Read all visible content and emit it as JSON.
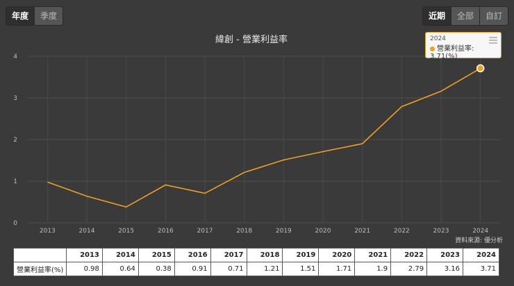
{
  "tabs_period": [
    {
      "label": "年度",
      "active": true
    },
    {
      "label": "季度",
      "active": false
    }
  ],
  "tabs_range": [
    {
      "label": "近期",
      "active": true
    },
    {
      "label": "全部",
      "active": false
    },
    {
      "label": "自訂",
      "active": false
    }
  ],
  "chart_data": {
    "type": "line",
    "title": "緯創 - 營業利益率",
    "xlabel": "",
    "ylabel": "",
    "x": [
      "2013",
      "2014",
      "2015",
      "2016",
      "2017",
      "2018",
      "2019",
      "2020",
      "2021",
      "2022",
      "2023",
      "2024"
    ],
    "series": [
      {
        "name": "營業利益率(%)",
        "values": [
          0.98,
          0.64,
          0.38,
          0.91,
          0.71,
          1.21,
          1.51,
          1.71,
          1.9,
          2.79,
          3.16,
          3.71
        ],
        "color": "#f0a020"
      }
    ],
    "ylim": [
      0,
      4
    ],
    "yticks": [
      "0",
      "1",
      "2",
      "3",
      "4"
    ],
    "grid": true,
    "highlight_index": 11
  },
  "tooltip": {
    "year": "2024",
    "text": "營業利益率: 3.71(%)"
  },
  "source_text": "資料來源: 優分析",
  "table": {
    "row_label": "營業利益率(%)",
    "years": [
      "2013",
      "2014",
      "2015",
      "2016",
      "2017",
      "2018",
      "2019",
      "2020",
      "2021",
      "2022",
      "2023",
      "2024"
    ],
    "values": [
      "0.98",
      "0.64",
      "0.38",
      "0.91",
      "0.71",
      "1.21",
      "1.51",
      "1.71",
      "1.9",
      "2.79",
      "3.16",
      "3.71"
    ]
  }
}
